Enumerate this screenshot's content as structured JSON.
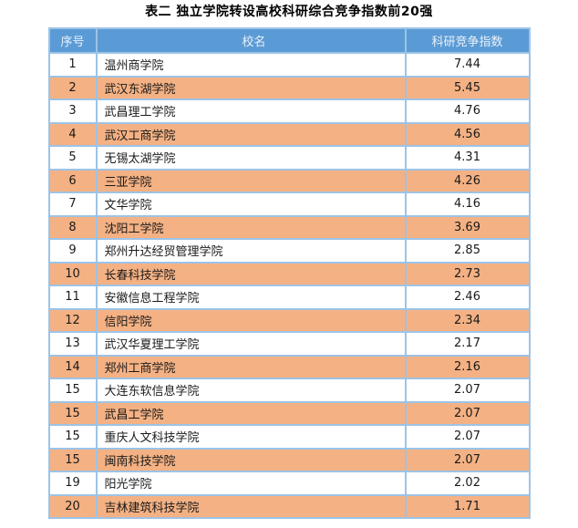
{
  "title": "表二 独立学院转设高校科研综合竞争指数前20强",
  "colors": {
    "header_bg": "#5B9BD5",
    "header_text": "#EAF1FB",
    "row_bg": "#FFFFFF",
    "row_alt_bg": "#F4B183",
    "border": "#9DC3E6",
    "cell_text": "#1A1A1A"
  },
  "chart_data": {
    "type": "table",
    "title": "表二 独立学院转设高校科研综合竞争指数前20强",
    "columns": [
      "序号",
      "校名",
      "科研竞争指数"
    ],
    "rows": [
      [
        1,
        "温州商学院",
        7.44
      ],
      [
        2,
        "武汉东湖学院",
        5.45
      ],
      [
        3,
        "武昌理工学院",
        4.76
      ],
      [
        4,
        "武汉工商学院",
        4.56
      ],
      [
        5,
        "无锡太湖学院",
        4.31
      ],
      [
        6,
        "三亚学院",
        4.26
      ],
      [
        7,
        "文华学院",
        4.16
      ],
      [
        8,
        "沈阳工学院",
        3.69
      ],
      [
        9,
        "郑州升达经贸管理学院",
        2.85
      ],
      [
        10,
        "长春科技学院",
        2.73
      ],
      [
        11,
        "安徽信息工程学院",
        2.46
      ],
      [
        12,
        "信阳学院",
        2.34
      ],
      [
        13,
        "武汉华夏理工学院",
        2.17
      ],
      [
        14,
        "郑州工商学院",
        2.16
      ],
      [
        15,
        "大连东软信息学院",
        2.07
      ],
      [
        15,
        "武昌工学院",
        2.07
      ],
      [
        15,
        "重庆人文科技学院",
        2.07
      ],
      [
        15,
        "闽南科技学院",
        2.07
      ],
      [
        19,
        "阳光学院",
        2.02
      ],
      [
        20,
        "吉林建筑科技学院",
        1.71
      ]
    ]
  }
}
